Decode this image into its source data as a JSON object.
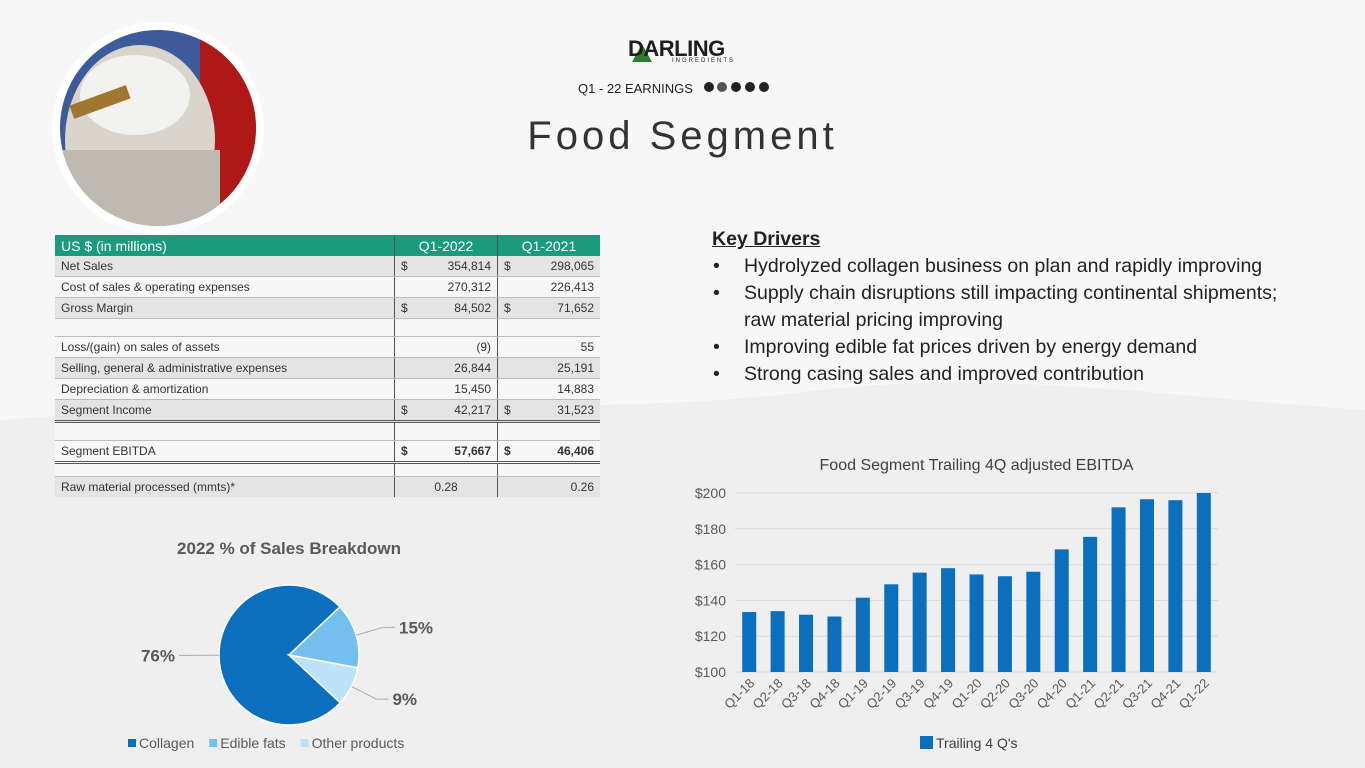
{
  "header": {
    "logo": "DARLING",
    "logo_sub": "INGREDIENTS",
    "subtitle": "Q1 - 22 EARNINGS",
    "title": "Food Segment"
  },
  "table": {
    "header": [
      "US $ (in millions)",
      "Q1-2022",
      "Q1-2021"
    ],
    "rows": [
      {
        "label": "Net Sales",
        "currency_2022": "$",
        "q1_2022": "354,814",
        "currency_2021": "$",
        "q1_2021": "298,065"
      },
      {
        "label": "Cost of sales & operating expenses",
        "q1_2022": "270,312",
        "q1_2021": "226,413"
      },
      {
        "label": "Gross Margin",
        "currency_2022": "$",
        "q1_2022": "84,502",
        "currency_2021": "$",
        "q1_2021": "71,652"
      },
      {
        "label": "Loss/(gain) on sales of assets",
        "q1_2022": "(9)",
        "q1_2021": "55"
      },
      {
        "label": "Selling, general & administrative expenses",
        "q1_2022": "26,844",
        "q1_2021": "25,191"
      },
      {
        "label": "Depreciation & amortization",
        "q1_2022": "15,450",
        "q1_2021": "14,883"
      },
      {
        "label": "Segment Income",
        "currency_2022": "$",
        "q1_2022": "42,217",
        "currency_2021": "$",
        "q1_2021": "31,523"
      },
      {
        "label": "Segment EBITDA",
        "currency_2022": "$",
        "q1_2022": "57,667",
        "currency_2021": "$",
        "q1_2021": "46,406"
      },
      {
        "label": "Raw material processed (mmts)*",
        "q1_2022": "0.28",
        "q1_2021": "0.26"
      }
    ]
  },
  "key_drivers": {
    "title": "Key Drivers",
    "bullets": [
      "Hydrolyzed collagen business on plan and rapidly improving",
      "Supply chain disruptions still impacting continental shipments; raw material pricing improving",
      "Improving edible fat prices driven by energy demand",
      "Strong casing sales and improved contribution"
    ]
  },
  "chart_data": [
    {
      "type": "pie",
      "title": "2022 % of Sales Breakdown",
      "categories": [
        "Collagen",
        "Edible fats",
        "Other products"
      ],
      "values": [
        76,
        15,
        9
      ],
      "value_labels": [
        "76%",
        "15%",
        "9%"
      ],
      "colors": [
        "#0b6fbd",
        "#74bfee",
        "#bde3f8"
      ],
      "legend": "bottom"
    },
    {
      "type": "bar",
      "title": "Food Segment Trailing 4Q adjusted EBITDA",
      "categories": [
        "Q1-18",
        "Q2-18",
        "Q3-18",
        "Q4-18",
        "Q1-19",
        "Q2-19",
        "Q3-19",
        "Q4-19",
        "Q1-20",
        "Q2-20",
        "Q3-20",
        "Q4-20",
        "Q1-21",
        "Q2-21",
        "Q3-21",
        "Q4-21",
        "Q1-22"
      ],
      "series": [
        {
          "name": "Trailing 4 Q's",
          "color": "#0b6fbd",
          "values": [
            133.5,
            134,
            132,
            131,
            141.5,
            149,
            155.5,
            158,
            154.5,
            153.5,
            156,
            168.5,
            175.5,
            192,
            196.5,
            196,
            200
          ]
        }
      ],
      "ylim": [
        100,
        200
      ],
      "yticks": [
        {
          "value": 100,
          "label": "$100"
        },
        {
          "value": 120,
          "label": "$120"
        },
        {
          "value": 140,
          "label": "$140"
        },
        {
          "value": 160,
          "label": "$160"
        },
        {
          "value": 180,
          "label": "$180"
        },
        {
          "value": 200,
          "label": "$200"
        }
      ],
      "grid": true,
      "legend": "bottom"
    }
  ]
}
